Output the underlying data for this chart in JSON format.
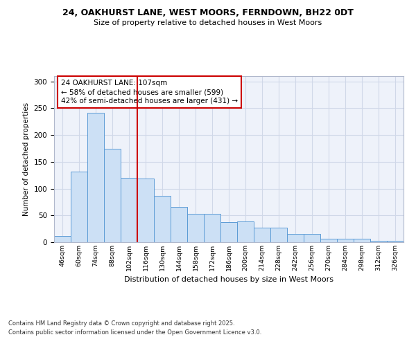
{
  "title1": "24, OAKHURST LANE, WEST MOORS, FERNDOWN, BH22 0DT",
  "title2": "Size of property relative to detached houses in West Moors",
  "xlabel": "Distribution of detached houses by size in West Moors",
  "ylabel": "Number of detached properties",
  "categories": [
    "46sqm",
    "60sqm",
    "74sqm",
    "88sqm",
    "102sqm",
    "116sqm",
    "130sqm",
    "144sqm",
    "158sqm",
    "172sqm",
    "186sqm",
    "200sqm",
    "214sqm",
    "228sqm",
    "242sqm",
    "256sqm",
    "270sqm",
    "284sqm",
    "298sqm",
    "312sqm",
    "326sqm"
  ],
  "values": [
    12,
    132,
    241,
    175,
    120,
    119,
    87,
    66,
    53,
    53,
    38,
    39,
    27,
    27,
    16,
    16,
    7,
    7,
    6,
    3,
    2
  ],
  "bar_color": "#cce0f5",
  "bar_edge_color": "#5b9bd5",
  "grid_color": "#d0d8e8",
  "bg_color": "#eef2fa",
  "annotation_text": "24 OAKHURST LANE: 107sqm\n← 58% of detached houses are smaller (599)\n42% of semi-detached houses are larger (431) →",
  "annotation_box_color": "#ffffff",
  "annotation_box_edge": "#cc0000",
  "vline_color": "#cc0000",
  "vline_x": 4.5,
  "footnote1": "Contains HM Land Registry data © Crown copyright and database right 2025.",
  "footnote2": "Contains public sector information licensed under the Open Government Licence v3.0.",
  "ylim": [
    0,
    310
  ],
  "yticks": [
    0,
    50,
    100,
    150,
    200,
    250,
    300
  ]
}
